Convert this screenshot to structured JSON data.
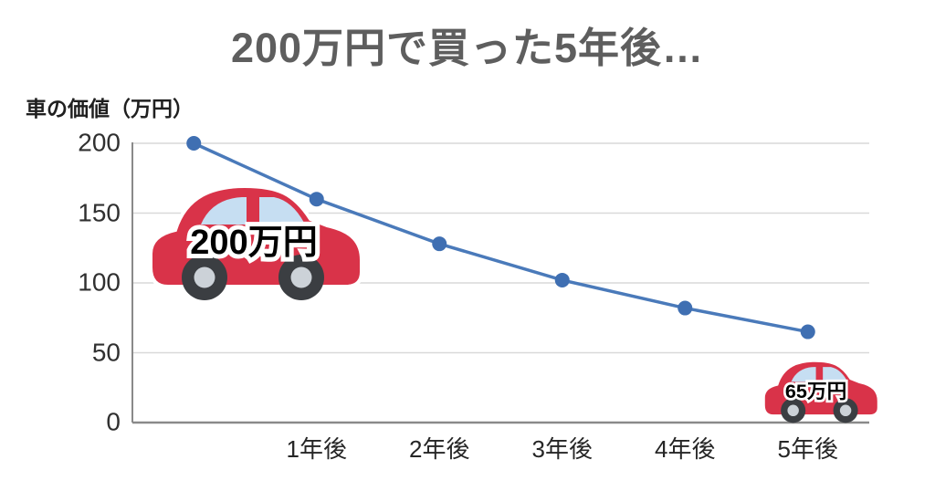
{
  "title": "200万円で買った5年後…",
  "y_axis_label": "車の価値（万円）",
  "annotations": {
    "purchase_price": "200万円",
    "final_price": "65万円"
  },
  "chart_data": {
    "type": "line",
    "title": "200万円で買った5年後…",
    "ylabel": "車の価値（万円）",
    "categories": [
      "",
      "1年後",
      "2年後",
      "3年後",
      "4年後",
      "5年後"
    ],
    "series": [
      {
        "name": "車の価値",
        "values": [
          200,
          160,
          128,
          102,
          82,
          65
        ]
      }
    ],
    "yticks": [
      0,
      50,
      100,
      150,
      200
    ],
    "ylim": [
      0,
      200
    ],
    "grid": true,
    "legend": "none",
    "annotated_points": [
      {
        "category_index": 0,
        "label": "200万円"
      },
      {
        "category_index": 5,
        "label": "65万円"
      }
    ]
  },
  "colors": {
    "title_text": "#5e5e5e",
    "line": "#4a7aba",
    "marker": "#3f6fb2",
    "gridline": "#d9d9d9",
    "axis": "#8a8a8a",
    "car_body": "#d93349",
    "car_window": "#c6def2",
    "car_wheel": "#3b3e42",
    "car_hub": "#ccd2d8"
  }
}
